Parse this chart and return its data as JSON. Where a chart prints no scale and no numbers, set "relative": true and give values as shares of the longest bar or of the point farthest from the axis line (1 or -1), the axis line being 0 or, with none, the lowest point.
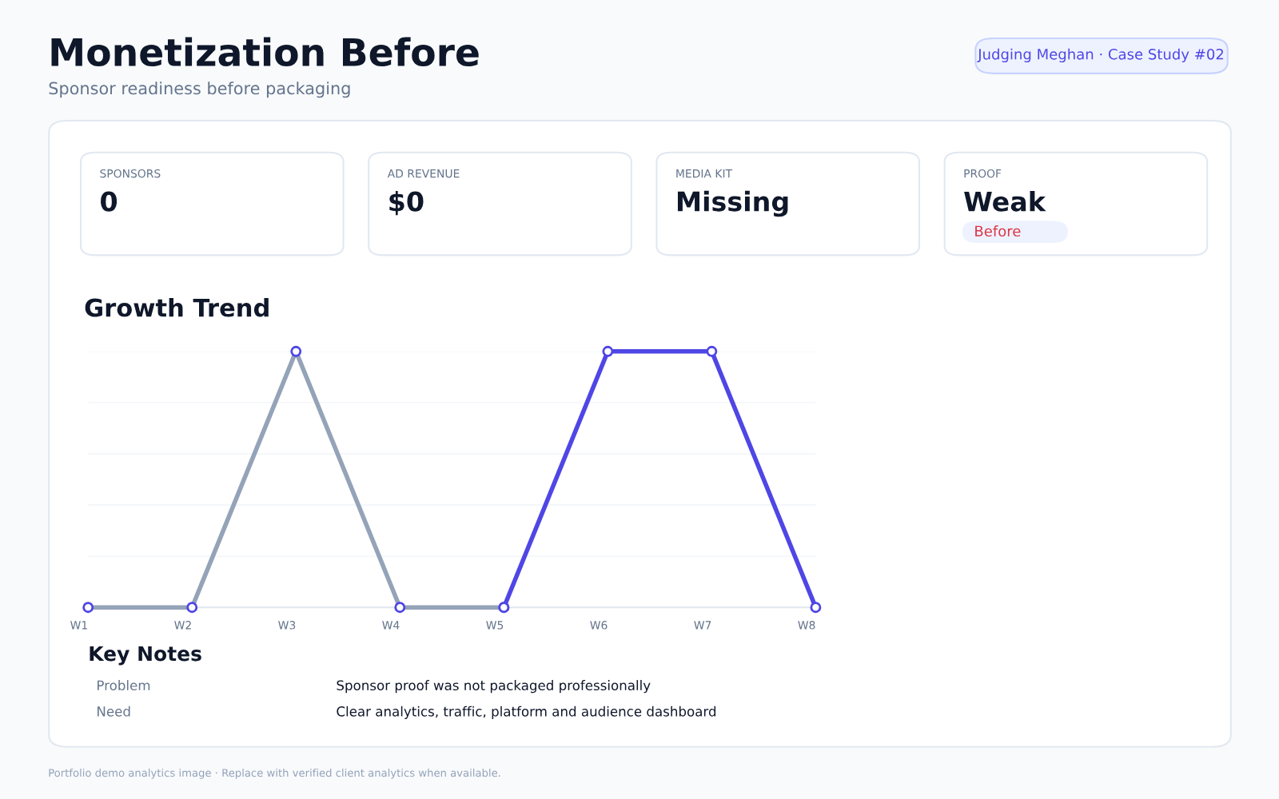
{
  "chart_data": [
    {
      "type": "other",
      "title": "Monetization Before",
      "subtitle": "Sponsor readiness before packaging",
      "annotations": [
        "Judging Meghan · Case Study #02",
        "SPONSORS",
        "0",
        "AD REVENUE",
        "$0",
        "MEDIA KIT",
        "Missing",
        "PROOF",
        "Weak",
        "Before"
      ]
    },
    {
      "type": "line",
      "title": "Growth Trend",
      "categories": [
        "W1",
        "W2",
        "W3",
        "W4",
        "W5",
        "W6",
        "W7",
        "W8"
      ],
      "relative": true,
      "grid": "y",
      "marker": "circle",
      "series": [
        {
          "color": "#94a3b8",
          "values": [
            0,
            0,
            1,
            0,
            0,
            null,
            null,
            null
          ]
        },
        {
          "color": "#4f46e5",
          "values": [
            null,
            null,
            null,
            null,
            0,
            1,
            1,
            0
          ]
        }
      ],
      "annotations": [
        "Key Notes",
        "Problem",
        "Sponsor proof was not packaged professionally",
        "Need",
        "Clear analytics, traffic, platform and audience dashboard",
        "Portfolio demo analytics image · Replace with verified client analytics when available."
      ]
    }
  ]
}
